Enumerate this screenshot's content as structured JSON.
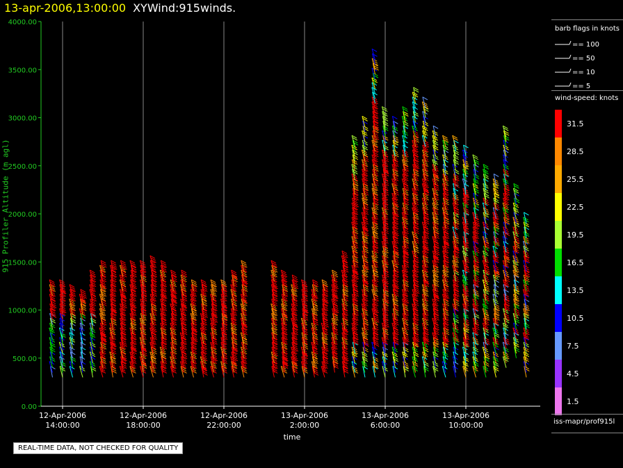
{
  "title": {
    "datetime": "13-apr-2006,13:00:00",
    "product": "XYWind:915winds."
  },
  "footer_note": "REAL-TIME DATA, NOT CHECKED FOR QUALITY",
  "legend": {
    "barb_title": "barb flags in knots",
    "barb_items": [
      "== 100",
      "== 50",
      "== 10",
      "== 5"
    ],
    "speed_title": "wind-speed: knots",
    "speed_scale": [
      {
        "label": "31.5",
        "color": "#ff0000"
      },
      {
        "label": "28.5",
        "color": "#ff8800"
      },
      {
        "label": "25.5",
        "color": "#ffaa00"
      },
      {
        "label": "22.5",
        "color": "#ffff00"
      },
      {
        "label": "19.5",
        "color": "#aaff33"
      },
      {
        "label": "16.5",
        "color": "#00dd00"
      },
      {
        "label": "13.5",
        "color": "#00ffff"
      },
      {
        "label": "10.5",
        "color": "#0000ff"
      },
      {
        "label": "7.5",
        "color": "#6699ff"
      },
      {
        "label": "4.5",
        "color": "#9933ff"
      },
      {
        "label": "1.5",
        "color": "#ee77ee"
      }
    ],
    "source": "iss-mapr/prof915l"
  },
  "chart_data": {
    "type": "scatter",
    "title": "XYWind:915winds.",
    "xlabel": "time",
    "ylabel": "915 Profiler Altitude (m agl)",
    "ylim": [
      0,
      4000
    ],
    "yticks": [
      "0.00",
      "500.00",
      "1000.00",
      "1500.00",
      "2000.00",
      "2500.00",
      "3000.00",
      "3500.00",
      "4000.00"
    ],
    "xticks": [
      {
        "date": "12-Apr-2006",
        "time": "14:00:00"
      },
      {
        "date": "12-Apr-2006",
        "time": "18:00:00"
      },
      {
        "date": "12-Apr-2006",
        "time": "22:00:00"
      },
      {
        "date": "13-Apr-2006",
        "time": "2:00:00"
      },
      {
        "date": "13-Apr-2006",
        "time": "6:00:00"
      },
      {
        "date": "13-Apr-2006",
        "time": "10:00:00"
      }
    ],
    "x_hours_range": [
      12.9,
      13.0
    ],
    "grid": "vertical lines at time ticks",
    "profiles": [
      {
        "t": 13.5,
        "top": 1200,
        "bottom": 300
      },
      {
        "t": 14.0,
        "top": 1200,
        "bottom": 300
      },
      {
        "t": 14.5,
        "top": 1150,
        "bottom": 300
      },
      {
        "t": 15.0,
        "top": 1100,
        "bottom": 300
      },
      {
        "t": 15.5,
        "top": 1300,
        "bottom": 300
      },
      {
        "t": 16.0,
        "top": 1400,
        "bottom": 300
      },
      {
        "t": 16.5,
        "top": 1400,
        "bottom": 300
      },
      {
        "t": 17.0,
        "top": 1400,
        "bottom": 300
      },
      {
        "t": 17.5,
        "top": 1400,
        "bottom": 300
      },
      {
        "t": 18.0,
        "top": 1400,
        "bottom": 300
      },
      {
        "t": 18.5,
        "top": 1450,
        "bottom": 300
      },
      {
        "t": 19.0,
        "top": 1400,
        "bottom": 300
      },
      {
        "t": 19.5,
        "top": 1300,
        "bottom": 300
      },
      {
        "t": 20.0,
        "top": 1300,
        "bottom": 300
      },
      {
        "t": 20.5,
        "top": 1200,
        "bottom": 300
      },
      {
        "t": 21.0,
        "top": 1200,
        "bottom": 300
      },
      {
        "t": 21.5,
        "top": 1200,
        "bottom": 300
      },
      {
        "t": 22.0,
        "top": 1200,
        "bottom": 300
      },
      {
        "t": 22.5,
        "top": 1300,
        "bottom": 300
      },
      {
        "t": 23.0,
        "top": 1400,
        "bottom": 300
      },
      {
        "t": 24.5,
        "top": 1400,
        "bottom": 300
      },
      {
        "t": 25.0,
        "top": 1300,
        "bottom": 300
      },
      {
        "t": 25.5,
        "top": 1250,
        "bottom": 300
      },
      {
        "t": 26.0,
        "top": 1200,
        "bottom": 300
      },
      {
        "t": 26.5,
        "top": 1200,
        "bottom": 300
      },
      {
        "t": 27.0,
        "top": 1200,
        "bottom": 300
      },
      {
        "t": 27.5,
        "top": 1300,
        "bottom": 350
      },
      {
        "t": 28.0,
        "top": 1500,
        "bottom": 300
      },
      {
        "t": 28.5,
        "top": 2700,
        "bottom": 300
      },
      {
        "t": 29.0,
        "top": 2900,
        "bottom": 300
      },
      {
        "t": 29.5,
        "top": 3600,
        "bottom": 300
      },
      {
        "t": 30.0,
        "top": 3000,
        "bottom": 300
      },
      {
        "t": 30.5,
        "top": 2900,
        "bottom": 300
      },
      {
        "t": 31.0,
        "top": 3000,
        "bottom": 300
      },
      {
        "t": 31.5,
        "top": 3200,
        "bottom": 300
      },
      {
        "t": 32.0,
        "top": 3100,
        "bottom": 300
      },
      {
        "t": 32.5,
        "top": 2800,
        "bottom": 300
      },
      {
        "t": 33.0,
        "top": 2700,
        "bottom": 300
      },
      {
        "t": 33.5,
        "top": 2700,
        "bottom": 300
      },
      {
        "t": 34.0,
        "top": 2600,
        "bottom": 300
      },
      {
        "t": 34.5,
        "top": 2500,
        "bottom": 300
      },
      {
        "t": 35.0,
        "top": 2400,
        "bottom": 300
      },
      {
        "t": 35.5,
        "top": 2300,
        "bottom": 300
      },
      {
        "t": 36.0,
        "top": 2800,
        "bottom": 400
      },
      {
        "t": 36.5,
        "top": 2200,
        "bottom": 500
      },
      {
        "t": 37.0,
        "top": 1900,
        "bottom": 300
      }
    ]
  }
}
